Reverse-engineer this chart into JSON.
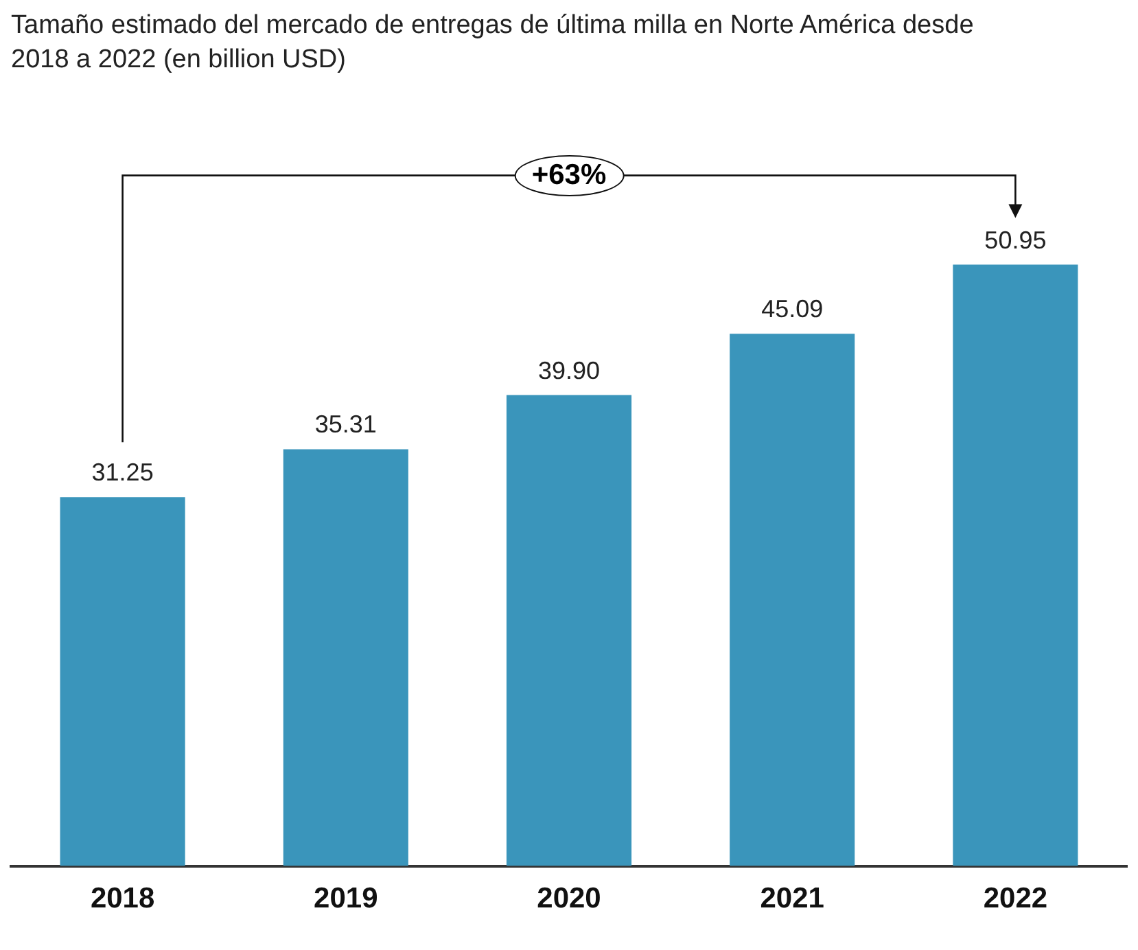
{
  "chart_data": {
    "type": "bar",
    "title": "Tamaño estimado del mercado de entregas de última milla en Norte América desde 2018 a 2022 (en billion USD)",
    "categories": [
      "2018",
      "2019",
      "2020",
      "2021",
      "2022"
    ],
    "values": [
      31.25,
      35.31,
      39.9,
      45.09,
      50.95
    ],
    "value_labels": [
      "31.25",
      "35.31",
      "39.90",
      "45.09",
      "50.95"
    ],
    "color": "#3a95bb",
    "legend": false,
    "grid": false,
    "annotations": [
      "+63%"
    ]
  }
}
